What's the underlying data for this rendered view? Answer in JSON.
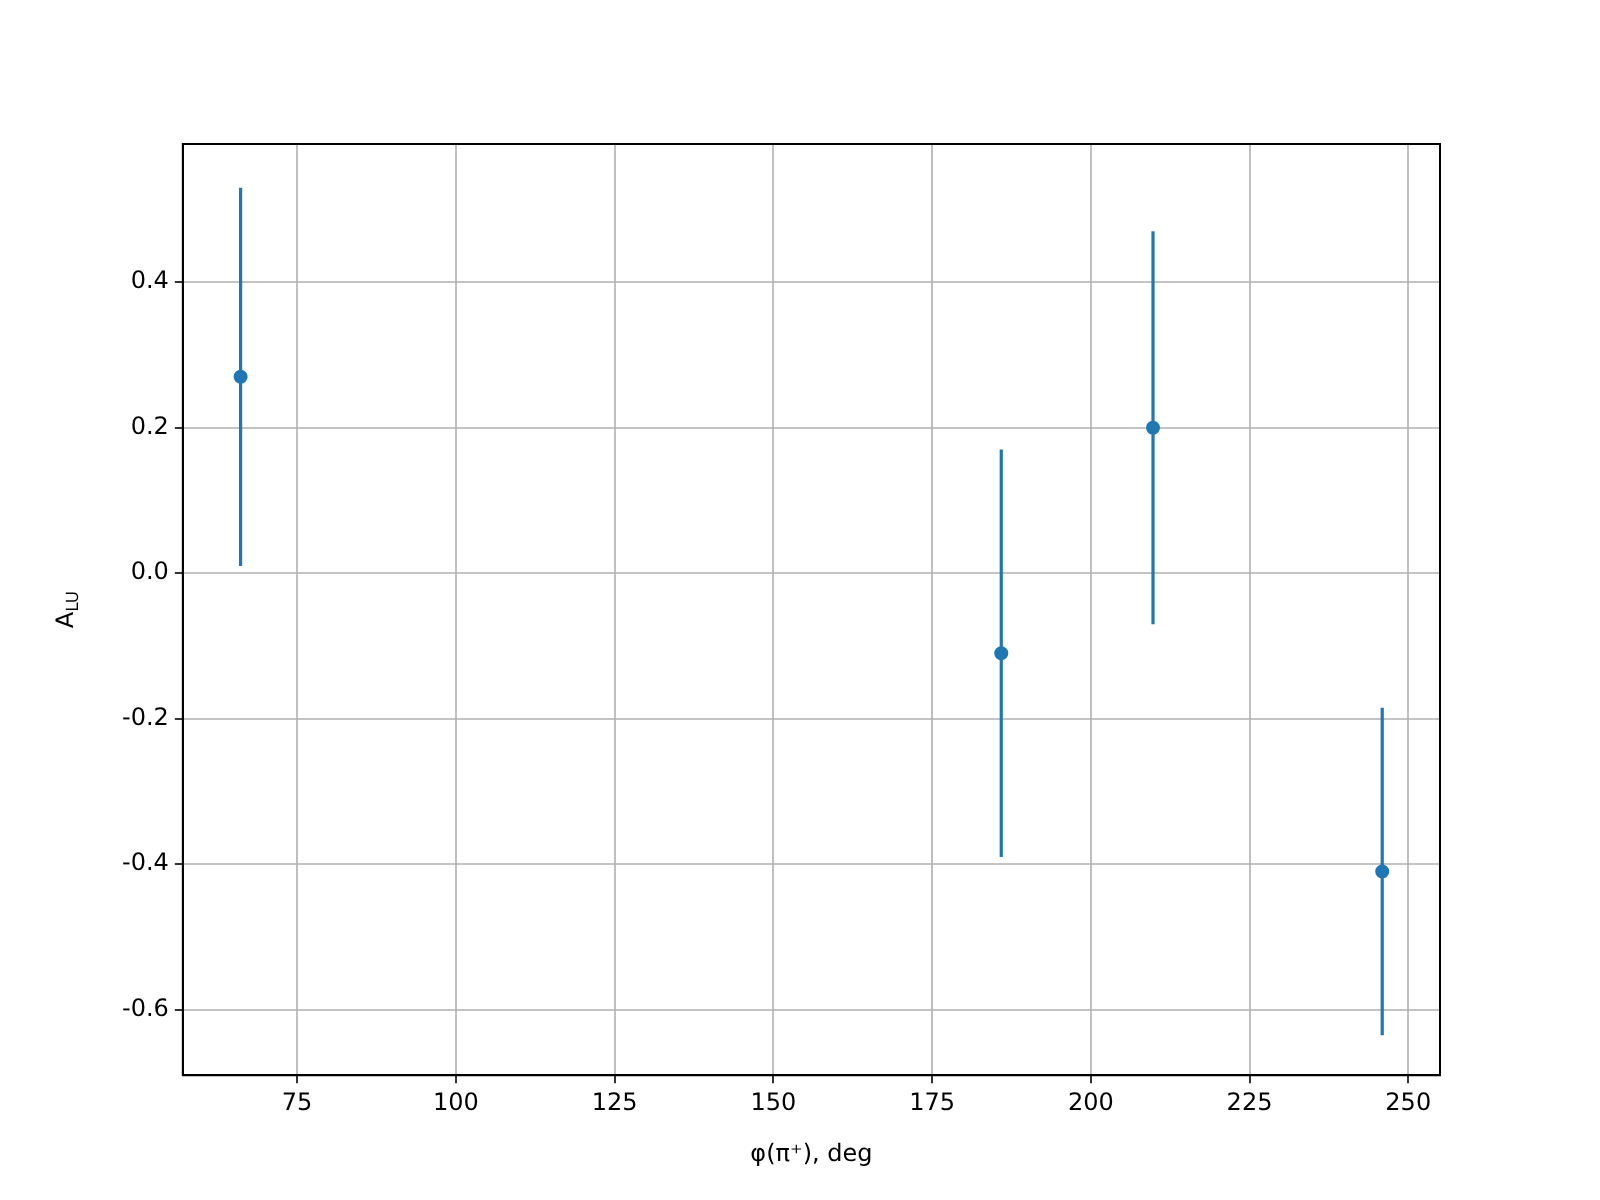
{
  "chart_data": {
    "type": "scatter",
    "xlabel": "φ(π⁺), deg",
    "ylabel": "A$_{LU}$",
    "x": [
      66.1,
      185.9,
      209.8,
      245.9
    ],
    "series": [
      {
        "color": "#1f77b4",
        "values": [
          0.27,
          -0.11,
          0.2,
          -0.41
        ],
        "errors": [
          0.26,
          0.28,
          0.27,
          0.225
        ]
      }
    ],
    "xlim": [
      57,
      255
    ],
    "xticks": [
      75,
      100,
      125,
      150,
      175,
      200,
      225,
      250
    ],
    "ylim": [
      -0.69,
      0.59
    ],
    "yticks": [
      {
        "value": -0.6,
        "label": "-0.6"
      },
      {
        "value": -0.4,
        "label": "-0.4"
      },
      {
        "value": -0.2,
        "label": "-0.2"
      },
      {
        "value": 0,
        "label": "0.0"
      },
      {
        "value": 0.2,
        "label": "0.2"
      },
      {
        "value": 0.4,
        "label": "0.4"
      }
    ],
    "grid": true,
    "marker": "circle",
    "legend": false
  }
}
